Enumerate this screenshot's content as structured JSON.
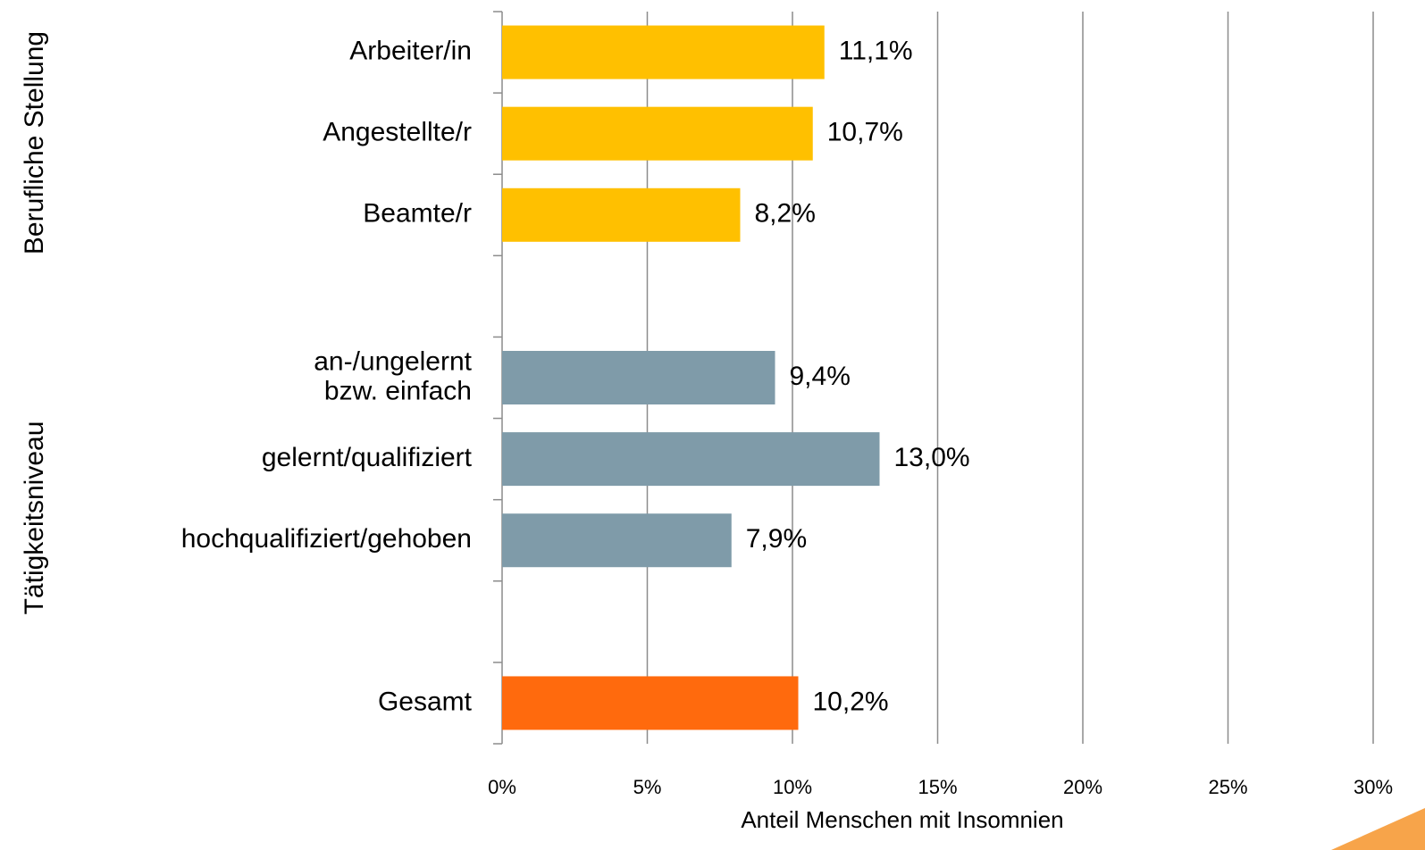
{
  "chart_data": {
    "type": "bar",
    "orientation": "horizontal",
    "group_labels": [
      "Berufliche Stellung",
      "Tätigkeitsniveau"
    ],
    "categories": [
      "Arbeiter/in",
      "Angestellte/r",
      "Beamte/r",
      null,
      "an-/ungelernt\nbzw. einfach",
      "gelernt/qualifiziert",
      "hochqualifiziert/gehoben",
      null,
      "Gesamt"
    ],
    "values": [
      11.1,
      10.7,
      8.2,
      null,
      9.4,
      13.0,
      7.9,
      null,
      10.2
    ],
    "value_labels": [
      "11,1%",
      "10,7%",
      "8,2%",
      null,
      "9,4%",
      "13,0%",
      "7,9%",
      null,
      "10,2%"
    ],
    "colors": [
      "#ffc000",
      "#ffc000",
      "#ffc000",
      null,
      "#7f9ba9",
      "#7f9ba9",
      "#7f9ba9",
      null,
      "#ff6a0d"
    ],
    "xlabel": "Anteil Menschen mit Insomnien",
    "xlim": [
      0,
      30
    ],
    "xticks": [
      {
        "value": 0,
        "label": "0%"
      },
      {
        "value": 5,
        "label": "5%"
      },
      {
        "value": 10,
        "label": "10%"
      },
      {
        "value": 15,
        "label": "15%"
      },
      {
        "value": 20,
        "label": "20%"
      },
      {
        "value": 25,
        "label": "25%"
      },
      {
        "value": 30,
        "label": "30%"
      }
    ],
    "grid": true
  }
}
